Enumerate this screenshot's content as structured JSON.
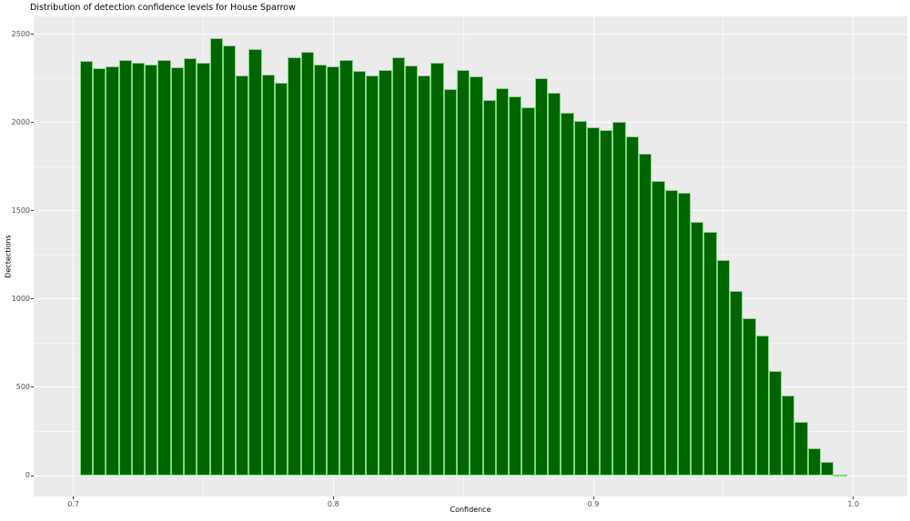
{
  "chart_data": {
    "type": "bar",
    "subtype": "histogram",
    "title": "Distribution of detection confidence levels for House Sparrow",
    "xlabel": "Confidence",
    "ylabel": "Dectections",
    "xlim": [
      0.7,
      1.0
    ],
    "ylim": [
      0,
      2500
    ],
    "grid": "on",
    "legend_position": "none",
    "bin_width": 0.005,
    "x_ticks": [
      "0.7",
      "0.8",
      "0.9",
      "1.0"
    ],
    "y_ticks": [
      "0",
      "500",
      "1000",
      "1500",
      "2000",
      "2500"
    ],
    "minor_x_ticks": [
      0.75,
      0.85,
      0.95
    ],
    "minor_y_ticks": [
      250,
      750,
      1250,
      1750,
      2250
    ],
    "bin_centers": [
      0.705,
      0.71,
      0.715,
      0.72,
      0.725,
      0.73,
      0.735,
      0.74,
      0.745,
      0.75,
      0.755,
      0.76,
      0.765,
      0.77,
      0.775,
      0.78,
      0.785,
      0.79,
      0.795,
      0.8,
      0.805,
      0.81,
      0.815,
      0.82,
      0.825,
      0.83,
      0.835,
      0.84,
      0.845,
      0.85,
      0.855,
      0.86,
      0.865,
      0.87,
      0.875,
      0.88,
      0.885,
      0.89,
      0.895,
      0.9,
      0.905,
      0.91,
      0.915,
      0.92,
      0.925,
      0.93,
      0.935,
      0.94,
      0.945,
      0.95,
      0.955,
      0.96,
      0.965,
      0.97,
      0.975,
      0.98,
      0.985,
      0.99,
      0.995
    ],
    "values": [
      2348,
      2308,
      2317,
      2354,
      2337,
      2328,
      2351,
      2313,
      2366,
      2337,
      2475,
      2437,
      2266,
      2415,
      2273,
      2222,
      2370,
      2400,
      2325,
      2317,
      2354,
      2291,
      2268,
      2298,
      2370,
      2322,
      2268,
      2339,
      2189,
      2295,
      2263,
      2125,
      2192,
      2148,
      2085,
      2248,
      2168,
      2054,
      2010,
      1970,
      1956,
      2003,
      1920,
      1822,
      1667,
      1617,
      1600,
      1437,
      1378,
      1222,
      1045,
      890,
      792,
      590,
      452,
      306,
      152,
      79,
      5
    ],
    "colors": {
      "bar_fill": "#006400",
      "bar_stroke": "#90EE90",
      "panel_bg": "#EBEBEB",
      "gridline": "#FFFFFF",
      "tick_text": "#4D4D4D",
      "title_text": "#000000"
    }
  }
}
